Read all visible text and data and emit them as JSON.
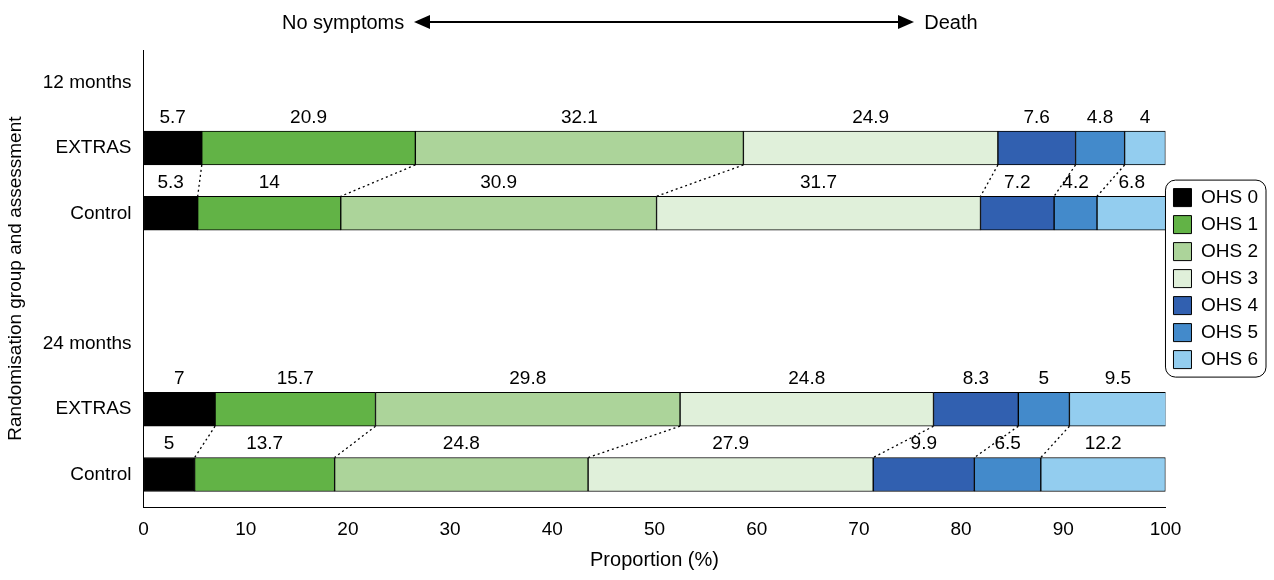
{
  "chart_data": {
    "type": "bar",
    "orientation": "horizontal",
    "stacked": true,
    "categories": [
      "12 months",
      "EXTRAS",
      "Control",
      null,
      "24 months",
      "EXTRAS",
      "Control"
    ],
    "series": [
      {
        "name": "OHS 0",
        "color": "#000000",
        "values": [
          null,
          5.7,
          5.3,
          null,
          null,
          7,
          5
        ]
      },
      {
        "name": "OHS 1",
        "color": "#62b346",
        "values": [
          null,
          20.9,
          14,
          null,
          null,
          15.7,
          13.7
        ]
      },
      {
        "name": "OHS 2",
        "color": "#acd49a",
        "values": [
          null,
          32.1,
          30.9,
          null,
          null,
          29.8,
          24.8
        ]
      },
      {
        "name": "OHS 3",
        "color": "#e0f0da",
        "values": [
          null,
          24.9,
          31.7,
          null,
          null,
          24.8,
          27.9
        ]
      },
      {
        "name": "OHS 4",
        "color": "#3160b0",
        "values": [
          null,
          7.6,
          7.2,
          null,
          null,
          8.3,
          9.9
        ]
      },
      {
        "name": "OHS 5",
        "color": "#438acb",
        "values": [
          null,
          4.8,
          4.2,
          null,
          null,
          5,
          6.5
        ]
      },
      {
        "name": "OHS 6",
        "color": "#93cdef",
        "values": [
          null,
          4,
          6.8,
          null,
          null,
          9.5,
          12.2
        ]
      }
    ],
    "xlim": [
      0,
      100
    ],
    "xticks": [
      0,
      10,
      20,
      30,
      40,
      50,
      60,
      70,
      80,
      90,
      100
    ],
    "xlabel": "Proportion (%)",
    "ylabel": "Randomisation group and assessment",
    "annotations": [
      "No symptoms",
      "Death"
    ],
    "data_labels": true,
    "grid": false,
    "legend": "right"
  }
}
